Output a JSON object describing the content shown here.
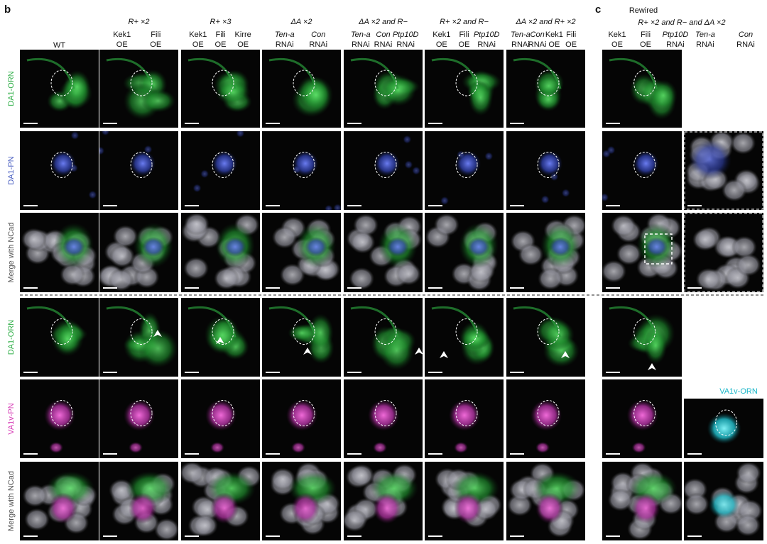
{
  "panel_b": {
    "label": "b",
    "columns": [
      {
        "label": "WT"
      },
      {
        "group": "R+ ×2",
        "items": [
          {
            "gene": "Kek1",
            "mod": "OE"
          },
          {
            "gene": "Fili",
            "mod": "OE"
          }
        ]
      },
      {
        "group": "R+ ×3",
        "items": [
          {
            "gene": "Kek1",
            "mod": "OE"
          },
          {
            "gene": "Fili",
            "mod": "OE"
          },
          {
            "gene": "Kirre",
            "mod": "OE"
          }
        ]
      },
      {
        "group": "ΔA ×2",
        "items": [
          {
            "gene": "Ten-a",
            "mod": "RNAi"
          },
          {
            "gene": "Con",
            "mod": "RNAi"
          }
        ]
      },
      {
        "group": "ΔA ×2 and R−",
        "items": [
          {
            "gene": "Ten-a",
            "mod": "RNAi"
          },
          {
            "gene": "Con",
            "mod": "RNAi"
          },
          {
            "gene": "Ptp10D",
            "mod": "RNAi"
          }
        ]
      },
      {
        "group": "R+ ×2 and R−",
        "items": [
          {
            "gene": "Kek1",
            "mod": "OE"
          },
          {
            "gene": "Fili",
            "mod": "OE"
          },
          {
            "gene": "Ptp10D",
            "mod": "RNAi"
          }
        ]
      },
      {
        "group": "ΔA ×2 and R+ ×2",
        "items": [
          {
            "gene": "Ten-a",
            "mod": "RNAi"
          },
          {
            "gene": "Con",
            "mod": "RNAi"
          },
          {
            "gene": "Kek1",
            "mod": "OE"
          },
          {
            "gene": "Fili",
            "mod": "OE"
          }
        ]
      }
    ],
    "row_labels": [
      "DA1-ORN",
      "DA1-PN",
      "Merge with NCad",
      "DA1-ORN",
      "VA1v-PN",
      "Merge with NCad"
    ]
  },
  "panel_c": {
    "label": "c",
    "header": "Rewired",
    "subheader": "R+ ×2 and R− and ΔA ×2",
    "items": [
      {
        "gene": "Kek1",
        "mod": "OE"
      },
      {
        "gene": "Fili",
        "mod": "OE"
      },
      {
        "gene": "Ptp10D",
        "mod": "RNAi"
      },
      {
        "gene": "Ten-a",
        "mod": "RNAi"
      },
      {
        "gene": "Con",
        "mod": "RNAi"
      }
    ],
    "inset_label": "VA1v-ORN"
  }
}
